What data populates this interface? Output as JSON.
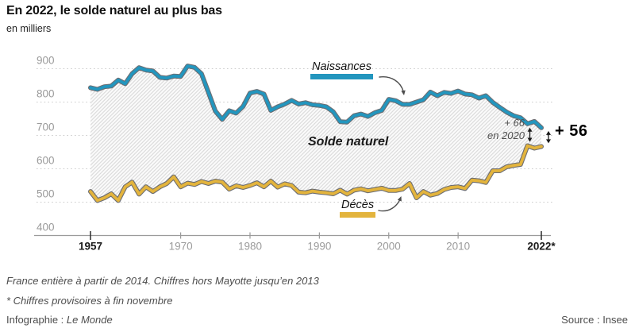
{
  "header": {
    "title": "En 2022, le solde naturel au plus bas",
    "subtitle": "en milliers"
  },
  "chart_data": {
    "type": "line",
    "title": "En 2022, le solde naturel au plus bas",
    "subtitle_unit": "en milliers",
    "area_label": "Solde naturel",
    "ylim": [
      400,
      900
    ],
    "yticks": [
      400,
      500,
      600,
      700,
      800,
      900
    ],
    "xticks": [
      1957,
      1970,
      1980,
      1990,
      2000,
      2010,
      2022
    ],
    "xtick_labels": [
      "1957",
      "1970",
      "1980",
      "1990",
      "2000",
      "2010",
      "2022*"
    ],
    "grid": "horizontal-dotted",
    "hatch_color": "#d9d9d9",
    "line_casing_color": "#54555a",
    "years": [
      1957,
      1958,
      1959,
      1960,
      1961,
      1962,
      1963,
      1964,
      1965,
      1966,
      1967,
      1968,
      1969,
      1970,
      1971,
      1972,
      1973,
      1974,
      1975,
      1976,
      1977,
      1978,
      1979,
      1980,
      1981,
      1982,
      1983,
      1984,
      1985,
      1986,
      1987,
      1988,
      1989,
      1990,
      1991,
      1992,
      1993,
      1994,
      1995,
      1996,
      1997,
      1998,
      1999,
      2000,
      2001,
      2002,
      2003,
      2004,
      2005,
      2006,
      2007,
      2008,
      2009,
      2010,
      2011,
      2012,
      2013,
      2014,
      2015,
      2016,
      2017,
      2018,
      2019,
      2020,
      2021,
      2022
    ],
    "series": [
      {
        "name": "Naissances",
        "color": "#2396be",
        "values": [
          843,
          838,
          846,
          848,
          866,
          855,
          885,
          903,
          896,
          893,
          874,
          872,
          878,
          877,
          908,
          904,
          885,
          829,
          773,
          748,
          774,
          767,
          787,
          827,
          832,
          824,
          775,
          786,
          794,
          805,
          794,
          798,
          792,
          790,
          786,
          771,
          741,
          740,
          759,
          764,
          757,
          768,
          775,
          808,
          804,
          793,
          793,
          800,
          807,
          830,
          819,
          829,
          826,
          833,
          824,
          822,
          812,
          819,
          799,
          784,
          770,
          759,
          753,
          735,
          742,
          723
        ]
      },
      {
        "name": "Décès",
        "color": "#e3b43d",
        "values": [
          532,
          505,
          513,
          525,
          505,
          546,
          560,
          524,
          546,
          532,
          546,
          556,
          576,
          546,
          557,
          553,
          562,
          556,
          563,
          560,
          539,
          549,
          544,
          550,
          558,
          546,
          563,
          545,
          555,
          550,
          530,
          528,
          533,
          530,
          528,
          525,
          536,
          524,
          536,
          540,
          534,
          538,
          542,
          535,
          535,
          539,
          556,
          513,
          532,
          521,
          526,
          538,
          544,
          546,
          541,
          566,
          564,
          559,
          594,
          594,
          606,
          610,
          613,
          669,
          662,
          667
        ]
      }
    ],
    "callouts": {
      "value_2020": "+ 66",
      "year_2020": "en 2020",
      "value_2022": "+ 56"
    }
  },
  "footnotes": [
    "France entière à partir de 2014. Chiffres hors Mayotte jusqu’en 2013",
    "* Chiffres provisoires à fin novembre"
  ],
  "credit": {
    "prefix": "Infographie : ",
    "brand": "Le Monde"
  },
  "source": {
    "text": "Source : Insee"
  }
}
